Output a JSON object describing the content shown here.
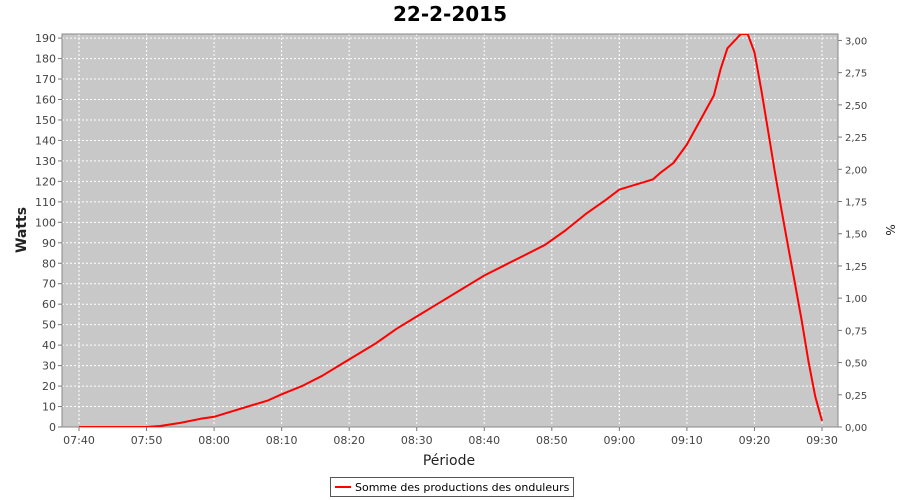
{
  "chart_data": {
    "type": "line",
    "title": "22-2-2015",
    "xlabel": "Période",
    "ylabel": "Watts",
    "y2label": "%",
    "x_tick_labels": [
      "07:40",
      "07:50",
      "08:00",
      "08:10",
      "08:20",
      "08:30",
      "08:40",
      "08:50",
      "09:00",
      "09:10",
      "09:20",
      "09:30"
    ],
    "ylim": [
      0,
      192
    ],
    "y_ticks": [
      0,
      10,
      20,
      30,
      40,
      50,
      60,
      70,
      80,
      90,
      100,
      110,
      120,
      130,
      140,
      150,
      160,
      170,
      180,
      190
    ],
    "y2lim": [
      0,
      3.05
    ],
    "y2_tick_labels": [
      "0,00",
      "0,25",
      "0,50",
      "0,75",
      "1,00",
      "1,25",
      "1,50",
      "1,75",
      "2,00",
      "2,25",
      "2,50",
      "2,75",
      "3,00"
    ],
    "grid": true,
    "legend_position": "bottom-center",
    "series": [
      {
        "name": "Somme des productions des onduleurs",
        "color": "#ff0000",
        "x": [
          "07:40",
          "07:42",
          "07:47",
          "07:50",
          "07:52",
          "07:55",
          "07:58",
          "08:00",
          "08:02",
          "08:05",
          "08:08",
          "08:10",
          "08:13",
          "08:16",
          "08:19",
          "08:21",
          "08:24",
          "08:27",
          "08:30",
          "08:33",
          "08:36",
          "08:38",
          "08:40",
          "08:43",
          "08:46",
          "08:49",
          "08:52",
          "08:55",
          "08:58",
          "09:00",
          "09:03",
          "09:05",
          "09:06",
          "09:08",
          "09:10",
          "09:12",
          "09:14",
          "09:15",
          "09:16",
          "09:18",
          "09:19",
          "09:20",
          "09:21",
          "09:22",
          "09:23",
          "09:24",
          "09:25",
          "09:26",
          "09:27",
          "09:28",
          "09:29",
          "09:30"
        ],
        "values": [
          0,
          0,
          0,
          0,
          0.5,
          2,
          4,
          5,
          7,
          10,
          13,
          16,
          20,
          25,
          31,
          35,
          41,
          48,
          54,
          60,
          66,
          70,
          74,
          79,
          84,
          89,
          96,
          104,
          111,
          116,
          119,
          121,
          124,
          129,
          138,
          150,
          162,
          175,
          185,
          192,
          192,
          183,
          165,
          145,
          125,
          106,
          88,
          70,
          52,
          32,
          15,
          3
        ]
      }
    ]
  }
}
